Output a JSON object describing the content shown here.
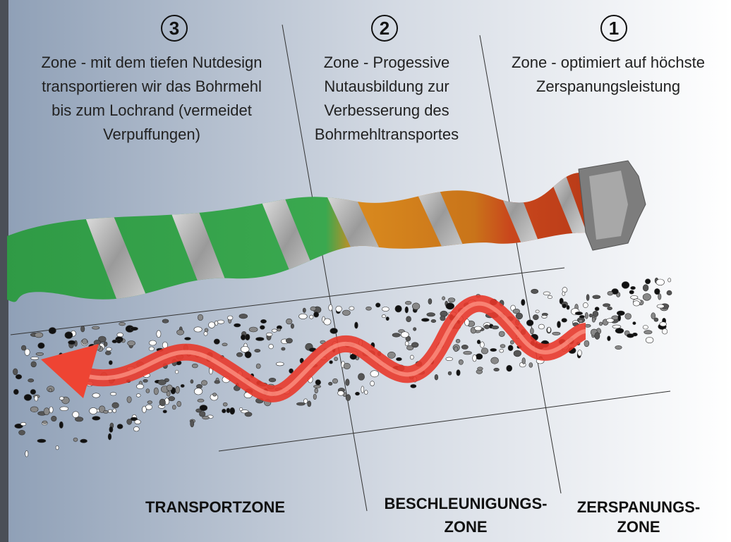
{
  "zones": [
    {
      "number": "3",
      "description": [
        "Zone - mit dem tiefen Nutdesign",
        "transportieren wir das Bohrmehl",
        "bis zum Lochrand (vermeidet",
        "Verpuffungen)"
      ],
      "label": [
        "TRANSPORTZONE"
      ]
    },
    {
      "number": "2",
      "description": [
        "Zone - Progessive",
        "Nutausbildung zur",
        "Verbesserung des",
        "Bohrmehltransportes"
      ],
      "label": [
        "BESCHLEUNIGUNGS-",
        "ZONE"
      ]
    },
    {
      "number": "1",
      "description": [
        "Zone - optimiert auf höchste",
        "Zerspanungsleistung"
      ],
      "label": [
        "ZERSPANUNGS-",
        "ZONE"
      ]
    }
  ]
}
